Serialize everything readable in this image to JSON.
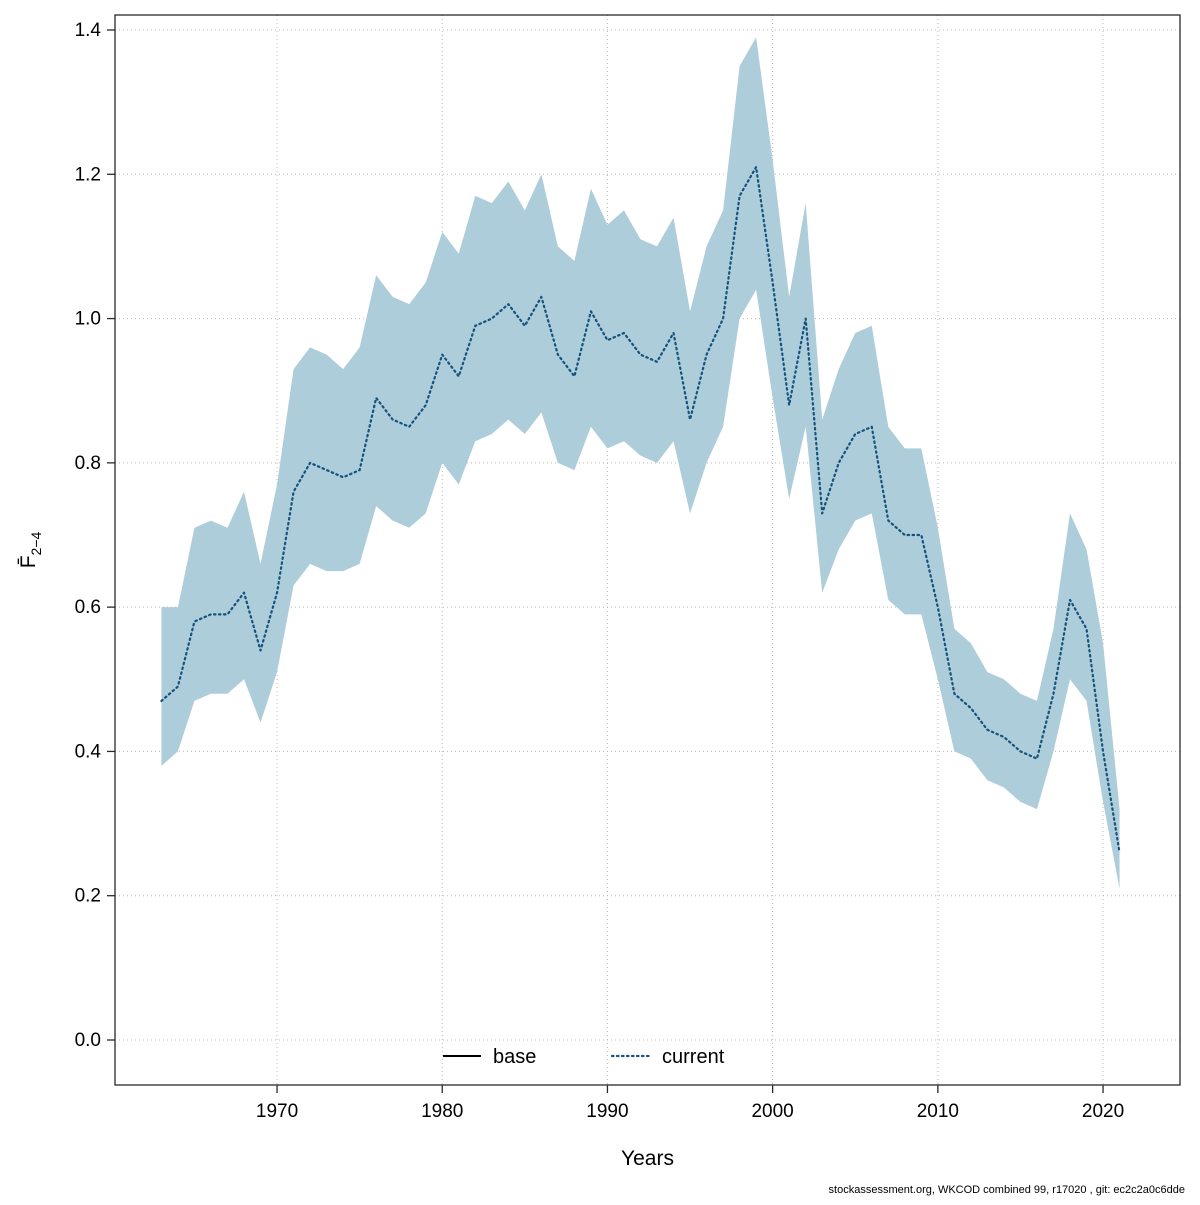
{
  "chart_data": {
    "type": "line",
    "title": "",
    "xlabel": "Years",
    "ylabel_main": "F̄",
    "ylabel_sub": "2−4",
    "x_ticks": [
      1970,
      1980,
      1990,
      2000,
      2010,
      2020
    ],
    "y_ticks": [
      0.0,
      0.2,
      0.4,
      0.6,
      0.8,
      1.0,
      1.2,
      1.4
    ],
    "xlim": [
      1960.2,
      2024.6
    ],
    "ylim": [
      0.0,
      1.4
    ],
    "grid": true,
    "legend_position": "bottom-center",
    "band_color": "#aecdda",
    "line_color": "#14537d",
    "years": [
      1963,
      1964,
      1965,
      1966,
      1967,
      1968,
      1969,
      1970,
      1971,
      1972,
      1973,
      1974,
      1975,
      1976,
      1977,
      1978,
      1979,
      1980,
      1981,
      1982,
      1983,
      1984,
      1985,
      1986,
      1987,
      1988,
      1989,
      1990,
      1991,
      1992,
      1993,
      1994,
      1995,
      1996,
      1997,
      1998,
      1999,
      2000,
      2001,
      2002,
      2003,
      2004,
      2005,
      2006,
      2007,
      2008,
      2009,
      2010,
      2011,
      2012,
      2013,
      2014,
      2015,
      2016,
      2017,
      2018,
      2019,
      2020,
      2021
    ],
    "series": [
      {
        "name": "current",
        "style": "dotted",
        "values": [
          0.47,
          0.49,
          0.58,
          0.59,
          0.59,
          0.62,
          0.54,
          0.62,
          0.76,
          0.8,
          0.79,
          0.78,
          0.79,
          0.89,
          0.86,
          0.85,
          0.88,
          0.95,
          0.92,
          0.99,
          1.0,
          1.02,
          0.99,
          1.03,
          0.95,
          0.92,
          1.01,
          0.97,
          0.98,
          0.95,
          0.94,
          0.98,
          0.86,
          0.95,
          1.0,
          1.17,
          1.21,
          1.05,
          0.88,
          1.0,
          0.73,
          0.8,
          0.84,
          0.85,
          0.72,
          0.7,
          0.7,
          0.6,
          0.48,
          0.46,
          0.43,
          0.42,
          0.4,
          0.39,
          0.48,
          0.61,
          0.57,
          0.4,
          0.26
        ]
      }
    ],
    "band": {
      "name": "confidence-band",
      "lower": [
        0.38,
        0.4,
        0.47,
        0.48,
        0.48,
        0.5,
        0.44,
        0.51,
        0.63,
        0.66,
        0.65,
        0.65,
        0.66,
        0.74,
        0.72,
        0.71,
        0.73,
        0.8,
        0.77,
        0.83,
        0.84,
        0.86,
        0.84,
        0.87,
        0.8,
        0.79,
        0.85,
        0.82,
        0.83,
        0.81,
        0.8,
        0.83,
        0.73,
        0.8,
        0.85,
        1.0,
        1.04,
        0.89,
        0.75,
        0.85,
        0.62,
        0.68,
        0.72,
        0.73,
        0.61,
        0.59,
        0.59,
        0.5,
        0.4,
        0.39,
        0.36,
        0.35,
        0.33,
        0.32,
        0.4,
        0.5,
        0.47,
        0.33,
        0.21
      ],
      "upper": [
        0.6,
        0.6,
        0.71,
        0.72,
        0.71,
        0.76,
        0.66,
        0.77,
        0.93,
        0.96,
        0.95,
        0.93,
        0.96,
        1.06,
        1.03,
        1.02,
        1.05,
        1.12,
        1.09,
        1.17,
        1.16,
        1.19,
        1.15,
        1.2,
        1.1,
        1.08,
        1.18,
        1.13,
        1.15,
        1.11,
        1.1,
        1.14,
        1.01,
        1.1,
        1.15,
        1.35,
        1.39,
        1.22,
        1.03,
        1.16,
        0.86,
        0.93,
        0.98,
        0.99,
        0.85,
        0.82,
        0.82,
        0.71,
        0.57,
        0.55,
        0.51,
        0.5,
        0.48,
        0.47,
        0.57,
        0.73,
        0.68,
        0.55,
        0.32
      ]
    },
    "legend": [
      {
        "label": "base",
        "style": "solid",
        "color": "#000000"
      },
      {
        "label": "current",
        "style": "dotted",
        "color": "#14537d"
      }
    ]
  },
  "footer": {
    "caption": "stockassessment.org, WKCOD  combined  99, r17020 , git: ec2c2a0c6dde"
  }
}
